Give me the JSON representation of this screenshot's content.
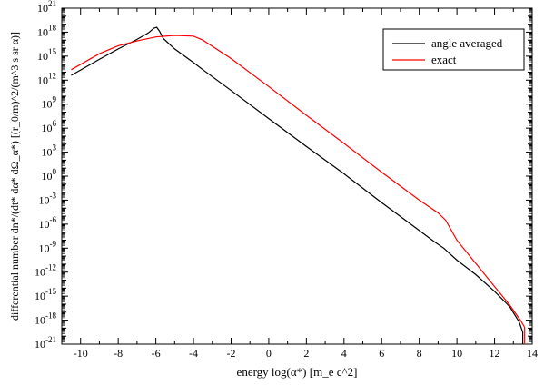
{
  "chart_data": {
    "type": "line",
    "title": "",
    "xlabel": "energy log(α*) [m_e c^2]",
    "ylabel": "differential number dn*/(dt* dα* dΩ_α*) [(r_0/m)^2/(m^3 s sr α)]",
    "xlim": [
      -11,
      14
    ],
    "ylim_log10": [
      -21,
      21
    ],
    "y_scale": "log",
    "x_ticks": [
      -10,
      -8,
      -6,
      -4,
      -2,
      0,
      2,
      4,
      6,
      8,
      10,
      12,
      14
    ],
    "y_tick_exponents": [
      -21,
      -18,
      -15,
      -12,
      -9,
      -6,
      -3,
      0,
      3,
      6,
      9,
      12,
      15,
      18,
      21
    ],
    "y_tick_base": "10",
    "grid": false,
    "legend_position": "top-right",
    "series": [
      {
        "name": "angle averaged",
        "color": "#000000",
        "x": [
          -10.5,
          -9.0,
          -8.0,
          -7.0,
          -6.4,
          -6.1,
          -5.95,
          -5.8,
          -5.6,
          -5.0,
          -4.0,
          -3.5,
          -2.0,
          0.0,
          2.0,
          4.0,
          6.0,
          8.0,
          8.8,
          9.3,
          10.0,
          11.0,
          12.0,
          12.8,
          13.3,
          13.5,
          13.5
        ],
        "log10_y": [
          12.6,
          14.6,
          15.9,
          17.1,
          17.9,
          18.5,
          18.6,
          18.1,
          17.2,
          15.9,
          14.2,
          13.3,
          10.7,
          7.2,
          3.7,
          0.3,
          -3.3,
          -6.8,
          -8.2,
          -9.0,
          -10.5,
          -12.3,
          -14.4,
          -16.3,
          -18.2,
          -19.5,
          -21.0
        ]
      },
      {
        "name": "exact",
        "color": "#ff0000",
        "x": [
          -10.5,
          -9.0,
          -8.0,
          -7.0,
          -6.0,
          -5.0,
          -4.0,
          -3.5,
          -2.0,
          0.0,
          2.0,
          4.0,
          6.0,
          8.0,
          9.0,
          9.4,
          10.0,
          11.0,
          12.0,
          12.8,
          13.4,
          13.6,
          13.6
        ],
        "log10_y": [
          13.3,
          15.3,
          16.3,
          16.9,
          17.4,
          17.6,
          17.5,
          17.0,
          14.7,
          11.2,
          7.6,
          4.1,
          0.5,
          -3.0,
          -4.6,
          -5.5,
          -8.0,
          -10.9,
          -13.8,
          -16.1,
          -18.1,
          -18.9,
          -21.0
        ]
      }
    ]
  }
}
